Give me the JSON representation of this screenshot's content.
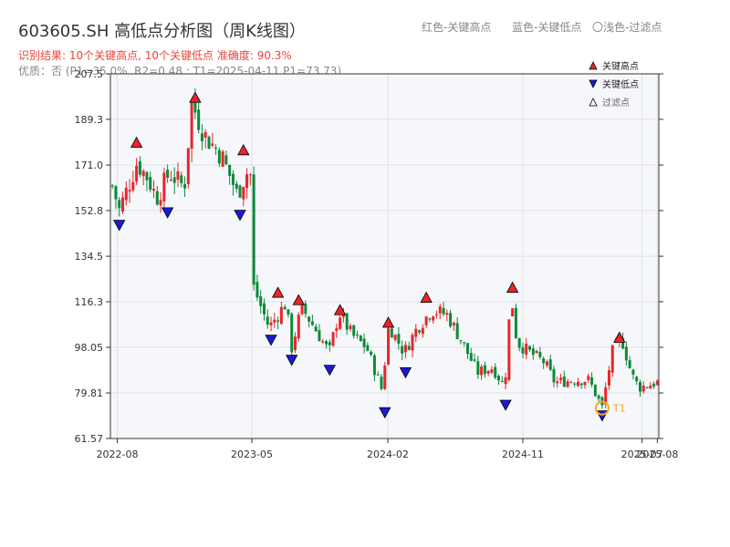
{
  "header": {
    "title": "603605.SH 高低点分析图（周K线图）",
    "subtitle": "识别结果: 10个关键高点, 10个关键低点   准确度: 90.3%",
    "note": "优质：否  (P1=35.0%, R2=0.48 ; T1=2025-04-11 P1=73.73)"
  },
  "top_legend": {
    "red": "红色-关键高点",
    "blue": "蓝色-关键低点",
    "light": "〇浅色-过滤点"
  },
  "colors": {
    "up": "#e8262a",
    "down": "#0c8a3a",
    "high_marker": "#e8262a",
    "low_marker": "#1a1ad6",
    "t1_marker": "#f5a623",
    "plot_bg": "#f6f7fa",
    "grid": "#dfe2e8"
  },
  "chart_data": {
    "type": "candlestick",
    "y_ticks": [
      "61.57",
      "79.81",
      "98.05",
      "116.3",
      "134.5",
      "152.8",
      "171.0",
      "189.3",
      "207.5"
    ],
    "ylim": [
      61.57,
      207.5
    ],
    "x_ticks": [
      {
        "label": "2022-08",
        "date": "2022-08-01"
      },
      {
        "label": "2023-05",
        "date": "2023-05-01"
      },
      {
        "label": "2024-02",
        "date": "2024-02-01"
      },
      {
        "label": "2024-11",
        "date": "2024-11-01"
      },
      {
        "label": "2025-07",
        "date": "2025-07-01"
      },
      {
        "label": "2025-08",
        "date": "2025-08-01"
      }
    ],
    "xlim": [
      "2022-07-18",
      "2025-08-04"
    ],
    "legend": {
      "items": [
        {
          "label": "关键高点",
          "marker": "triangle-up",
          "color": "#e8262a"
        },
        {
          "label": "关键低点",
          "marker": "triangle-down",
          "color": "#1a1ad6"
        },
        {
          "label": "过滤点",
          "marker": "triangle-up-hollow",
          "color": "#000000"
        }
      ],
      "placement": "top-right"
    },
    "waypoints": [
      [
        "2022-07-20",
        164
      ],
      [
        "2022-08-05",
        153
      ],
      [
        "2022-09-10",
        172
      ],
      [
        "2022-10-01",
        166
      ],
      [
        "2022-10-20",
        158
      ],
      [
        "2022-11-15",
        168
      ],
      [
        "2022-12-15",
        162
      ],
      [
        "2022-12-30",
        196
      ],
      [
        "2023-01-25",
        183
      ],
      [
        "2023-02-28",
        175
      ],
      [
        "2023-03-25",
        163
      ],
      [
        "2023-04-01",
        159
      ],
      [
        "2023-04-20",
        168
      ],
      [
        "2023-04-28",
        167
      ],
      [
        "2023-05-05",
        122
      ],
      [
        "2023-05-20",
        114
      ],
      [
        "2023-06-05",
        106
      ],
      [
        "2023-07-10",
        116
      ],
      [
        "2023-07-20",
        97
      ],
      [
        "2023-08-10",
        114
      ],
      [
        "2023-09-05",
        106
      ],
      [
        "2023-10-05",
        96
      ],
      [
        "2023-10-25",
        112
      ],
      [
        "2023-11-20",
        103
      ],
      [
        "2023-12-20",
        98
      ],
      [
        "2024-01-20",
        81
      ],
      [
        "2024-02-03",
        107
      ],
      [
        "2024-03-05",
        96
      ],
      [
        "2024-04-01",
        106
      ],
      [
        "2024-05-01",
        113
      ],
      [
        "2024-06-01",
        111
      ],
      [
        "2024-07-01",
        100
      ],
      [
        "2024-08-01",
        88
      ],
      [
        "2024-09-01",
        90
      ],
      [
        "2024-09-25",
        82
      ],
      [
        "2024-10-08",
        120
      ],
      [
        "2024-10-20",
        100
      ],
      [
        "2024-11-15",
        96
      ],
      [
        "2024-12-15",
        92
      ],
      [
        "2025-01-05",
        84
      ],
      [
        "2025-02-15",
        85
      ],
      [
        "2025-03-15",
        85
      ],
      [
        "2025-04-11",
        74
      ],
      [
        "2025-05-01",
        96
      ],
      [
        "2025-05-20",
        102
      ],
      [
        "2025-06-10",
        87
      ],
      [
        "2025-06-25",
        82
      ],
      [
        "2025-08-01",
        84
      ]
    ],
    "key_highs": [
      {
        "date": "2022-09-09",
        "value": 177
      },
      {
        "date": "2023-01-06",
        "value": 195
      },
      {
        "date": "2023-04-14",
        "value": 174
      },
      {
        "date": "2023-06-23",
        "value": 117
      },
      {
        "date": "2023-08-04",
        "value": 114
      },
      {
        "date": "2023-10-27",
        "value": 110
      },
      {
        "date": "2024-02-02",
        "value": 105
      },
      {
        "date": "2024-04-19",
        "value": 115
      },
      {
        "date": "2024-10-11",
        "value": 119
      },
      {
        "date": "2025-05-16",
        "value": 99
      }
    ],
    "key_lows": [
      {
        "date": "2022-08-05",
        "value": 150
      },
      {
        "date": "2022-11-11",
        "value": 155
      },
      {
        "date": "2023-04-07",
        "value": 154
      },
      {
        "date": "2023-06-09",
        "value": 104
      },
      {
        "date": "2023-07-21",
        "value": 96
      },
      {
        "date": "2023-10-06",
        "value": 92
      },
      {
        "date": "2024-01-26",
        "value": 75
      },
      {
        "date": "2024-03-08",
        "value": 91
      },
      {
        "date": "2024-09-27",
        "value": 78
      },
      {
        "date": "2025-04-11",
        "value": 73.73
      }
    ],
    "t1": {
      "label": "T1",
      "date": "2025-04-11",
      "value": 73.73
    }
  }
}
